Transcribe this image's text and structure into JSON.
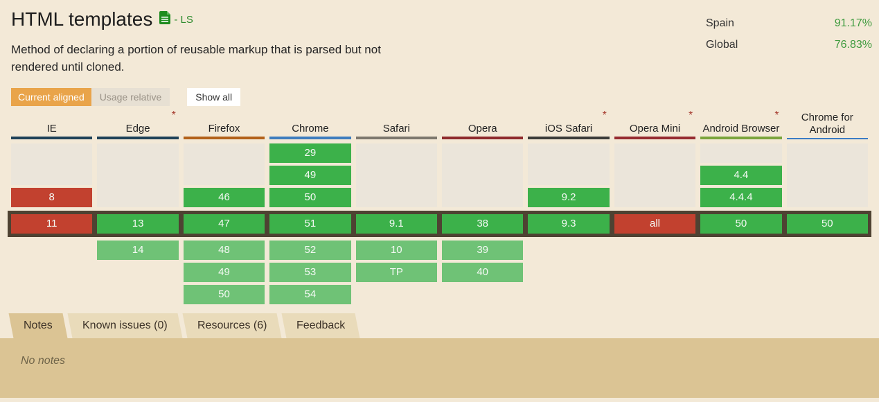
{
  "header": {
    "title": "HTML templates",
    "spec_status": "- LS",
    "description": "Method of declaring a portion of reusable markup that is parsed but not rendered until cloned.",
    "usage_stats": [
      {
        "label": "Spain",
        "value": "91.17%"
      },
      {
        "label": "Global",
        "value": "76.83%"
      }
    ]
  },
  "toolbar": {
    "current_aligned_label": "Current aligned",
    "usage_relative_label": "Usage relative",
    "show_all_label": "Show all",
    "accent_orange": "#E9A44A"
  },
  "support_table": {
    "colors": {
      "supported": "#3CB14A",
      "supported_future": "#6FC276",
      "not_supported": "#C2412F",
      "no_data": "#EBE5DA",
      "current_row_border": "#4E4232",
      "note_star": "#A5392D"
    },
    "columns": [
      {
        "name": "IE",
        "starred": false,
        "bar_color": "#1E4158",
        "past": [
          {
            "type": "empty",
            "span": 2
          },
          {
            "label": "8",
            "type": "n"
          }
        ],
        "current": {
          "label": "11",
          "type": "n"
        },
        "future": []
      },
      {
        "name": "Edge",
        "starred": true,
        "bar_color": "#1E4158",
        "past": [
          {
            "type": "empty",
            "span": 3
          }
        ],
        "current": {
          "label": "13",
          "type": "y"
        },
        "future": [
          {
            "label": "14"
          }
        ]
      },
      {
        "name": "Firefox",
        "starred": false,
        "bar_color": "#B26119",
        "past": [
          {
            "type": "empty",
            "span": 2
          },
          {
            "label": "46",
            "type": "y"
          }
        ],
        "current": {
          "label": "47",
          "type": "y"
        },
        "future": [
          {
            "label": "48"
          },
          {
            "label": "49"
          },
          {
            "label": "50"
          }
        ]
      },
      {
        "name": "Chrome",
        "starred": false,
        "bar_color": "#3E7DBE",
        "past": [
          {
            "label": "29",
            "type": "y"
          },
          {
            "label": "49",
            "type": "y"
          },
          {
            "label": "50",
            "type": "y"
          }
        ],
        "current": {
          "label": "51",
          "type": "y"
        },
        "future": [
          {
            "label": "52"
          },
          {
            "label": "53"
          },
          {
            "label": "54"
          }
        ]
      },
      {
        "name": "Safari",
        "starred": false,
        "bar_color": "#7D786E",
        "past": [
          {
            "type": "empty",
            "span": 3
          }
        ],
        "current": {
          "label": "9.1",
          "type": "y"
        },
        "future": [
          {
            "label": "10"
          },
          {
            "label": "TP"
          }
        ]
      },
      {
        "name": "Opera",
        "starred": false,
        "bar_color": "#8F2A2C",
        "past": [
          {
            "type": "empty",
            "span": 3
          }
        ],
        "current": {
          "label": "38",
          "type": "y"
        },
        "future": [
          {
            "label": "39"
          },
          {
            "label": "40"
          }
        ]
      },
      {
        "name": "iOS Safari",
        "starred": true,
        "bar_color": "#3B3B39",
        "past": [
          {
            "type": "empty",
            "span": 2
          },
          {
            "label": "9.2",
            "type": "y"
          }
        ],
        "current": {
          "label": "9.3",
          "type": "y"
        },
        "future": []
      },
      {
        "name": "Opera Mini",
        "starred": true,
        "bar_color": "#962B30",
        "past": [
          {
            "type": "empty",
            "span": 3
          }
        ],
        "current": {
          "label": "all",
          "type": "n"
        },
        "future": []
      },
      {
        "name": "Android Browser",
        "starred": true,
        "bar_color": "#7BA43C",
        "past": [
          {
            "type": "empty",
            "span": 1
          },
          {
            "label": "4.4",
            "type": "y"
          },
          {
            "label": "4.4.4",
            "type": "y"
          }
        ],
        "current": {
          "label": "50",
          "type": "y"
        },
        "future": []
      },
      {
        "name": "Chrome for Android",
        "starred": false,
        "bar_color": "#3B7CC4",
        "past": [
          {
            "type": "empty",
            "span": 3
          }
        ],
        "current": {
          "label": "50",
          "type": "y"
        },
        "future": []
      }
    ]
  },
  "tabs": [
    {
      "label": "Notes",
      "active": true
    },
    {
      "label": "Known issues (0)",
      "active": false
    },
    {
      "label": "Resources (6)",
      "active": false
    },
    {
      "label": "Feedback",
      "active": false
    }
  ],
  "notes_panel": {
    "text": "No notes"
  }
}
